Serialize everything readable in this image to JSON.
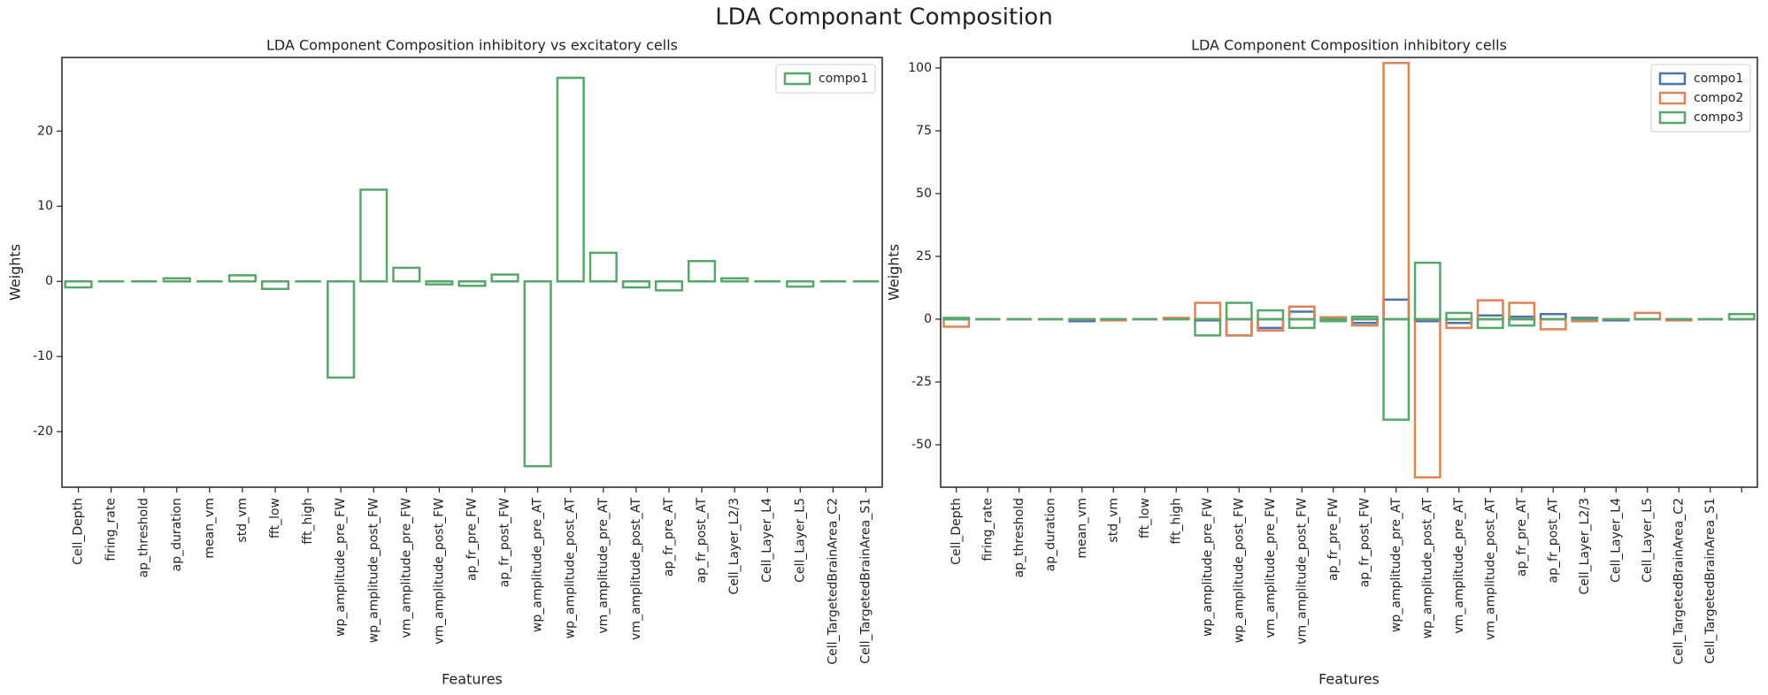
{
  "title": "LDA Componant Composition",
  "chart_data": [
    {
      "type": "bar",
      "title": "LDA Component Composition inhibitory vs excitatory cells",
      "xlabel": "Features",
      "ylabel": "Weights",
      "categories": [
        "Cell_Depth",
        "firing_rate",
        "ap_threshold",
        "ap_duration",
        "mean_vm",
        "std_vm",
        "fft_low",
        "fft_high",
        "wp_amplitude_pre_FW",
        "wp_amplitude_post_FW",
        "vm_amplitude_pre_FW",
        "vm_amplitude_post_FW",
        "ap_fr_pre_FW",
        "ap_fr_post_FW",
        "wp_amplitude_pre_AT",
        "wp_amplitude_post_AT",
        "vm_amplitude_pre_AT",
        "vm_amplitude_post_AT",
        "ap_fr_pre_AT",
        "ap_fr_post_AT",
        "Cell_Layer_L2/3",
        "Cell_Layer_L4",
        "Cell_Layer_L5",
        "Cell_TargetedBrainArea_C2",
        "Cell_TargetedBrainArea_S1"
      ],
      "series": [
        {
          "name": "compo1",
          "color": "#55a868",
          "values": [
            -0.8,
            0,
            0,
            0.4,
            0,
            0.8,
            -1,
            0,
            -12.8,
            12.2,
            1.8,
            -0.4,
            -0.6,
            0.9,
            -24.6,
            27.1,
            3.8,
            -0.8,
            -1.2,
            2.7,
            0.4,
            0,
            -0.7,
            0,
            0
          ]
        }
      ],
      "ylim": [
        -27.4,
        29.8
      ],
      "yticks": [
        -20,
        -10,
        0,
        10,
        20
      ],
      "legend": "upper right"
    },
    {
      "type": "bar",
      "title": "LDA Component Composition inhibitory cells",
      "xlabel": "Features",
      "ylabel": "Weights",
      "categories": [
        "Cell_Depth",
        "firing_rate",
        "ap_threshold",
        "ap_duration",
        "mean_vm",
        "std_vm",
        "fft_low",
        "fft_high",
        "wp_amplitude_pre_FW",
        "wp_amplitude_post_FW",
        "vm_amplitude_pre_FW",
        "vm_amplitude_post_FW",
        "ap_fr_pre_FW",
        "ap_fr_post_FW",
        "wp_amplitude_pre_AT",
        "wp_amplitude_post_AT",
        "vm_amplitude_pre_AT",
        "vm_amplitude_post_AT",
        "ap_fr_pre_AT",
        "ap_fr_post_AT",
        "Cell_Layer_L2/3",
        "Cell_Layer_L4",
        "Cell_Layer_L5",
        "Cell_TargetedBrainArea_C2",
        "Cell_TargetedBrainArea_S1",
        null
      ],
      "series": [
        {
          "name": "compo1",
          "color": "#4c72b0",
          "values": [
            0,
            0,
            0,
            0,
            -0.8,
            0,
            0,
            0,
            -0.5,
            -6.5,
            -3.5,
            3,
            0,
            -1.5,
            7.8,
            -0.8,
            -1.5,
            1.5,
            1,
            2,
            0.5,
            -0.5,
            0,
            0,
            0,
            0
          ]
        },
        {
          "name": "compo2",
          "color": "#dd8452",
          "values": [
            -3,
            0,
            0,
            0,
            0,
            -0.5,
            0,
            0.5,
            6.5,
            -6.5,
            -4.5,
            5,
            0.8,
            -2.5,
            102,
            -63,
            -3.5,
            7.5,
            6.5,
            -4,
            -0.8,
            0,
            2.5,
            -0.5,
            0,
            0
          ]
        },
        {
          "name": "compo3",
          "color": "#55a868",
          "values": [
            0.5,
            0,
            0,
            0,
            0,
            0,
            0,
            0,
            -6.5,
            6.5,
            3.5,
            -3.5,
            -0.8,
            1,
            -40,
            22.5,
            2.5,
            -3.5,
            -2.5,
            0,
            0,
            0,
            0,
            0,
            0,
            2
          ]
        }
      ],
      "ylim": [
        -66.9,
        104.2
      ],
      "yticks": [
        -50,
        -25,
        0,
        25,
        50,
        75,
        100
      ],
      "legend": "upper right"
    }
  ]
}
